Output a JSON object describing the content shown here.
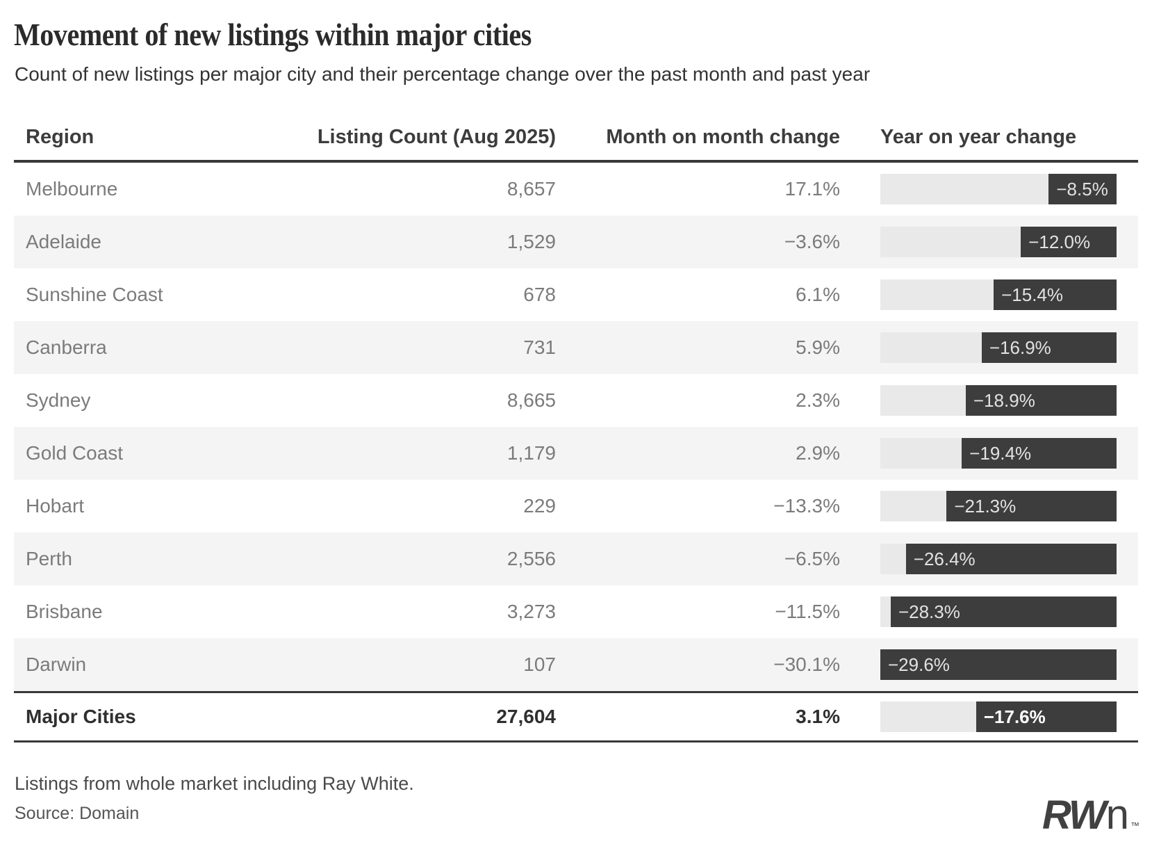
{
  "header": {
    "title": "Movement of new listings within major cities",
    "subtitle": "Count of new listings per major city and their percentage change over the past month and past year"
  },
  "chart_data": {
    "type": "table",
    "columns": [
      "Region",
      "Listing Count (Aug 2025)",
      "Month on month change",
      "Year on year change"
    ],
    "rows": [
      {
        "region": "Melbourne",
        "listing_count": "8,657",
        "mom_change": "17.1%",
        "yoy_change": -8.5,
        "yoy_label": "−8.5%"
      },
      {
        "region": "Adelaide",
        "listing_count": "1,529",
        "mom_change": "−3.6%",
        "yoy_change": -12.0,
        "yoy_label": "−12.0%"
      },
      {
        "region": "Sunshine Coast",
        "listing_count": "678",
        "mom_change": "6.1%",
        "yoy_change": -15.4,
        "yoy_label": "−15.4%"
      },
      {
        "region": "Canberra",
        "listing_count": "731",
        "mom_change": "5.9%",
        "yoy_change": -16.9,
        "yoy_label": "−16.9%"
      },
      {
        "region": "Sydney",
        "listing_count": "8,665",
        "mom_change": "2.3%",
        "yoy_change": -18.9,
        "yoy_label": "−18.9%"
      },
      {
        "region": "Gold Coast",
        "listing_count": "1,179",
        "mom_change": "2.9%",
        "yoy_change": -19.4,
        "yoy_label": "−19.4%"
      },
      {
        "region": "Hobart",
        "listing_count": "229",
        "mom_change": "−13.3%",
        "yoy_change": -21.3,
        "yoy_label": "−21.3%"
      },
      {
        "region": "Perth",
        "listing_count": "2,556",
        "mom_change": "−6.5%",
        "yoy_change": -26.4,
        "yoy_label": "−26.4%"
      },
      {
        "region": "Brisbane",
        "listing_count": "3,273",
        "mom_change": "−11.5%",
        "yoy_change": -28.3,
        "yoy_label": "−28.3%"
      },
      {
        "region": "Darwin",
        "listing_count": "107",
        "mom_change": "−30.1%",
        "yoy_change": -29.6,
        "yoy_label": "−29.6%"
      }
    ],
    "total_row": {
      "region": "Major Cities",
      "listing_count": "27,604",
      "mom_change": "3.1%",
      "yoy_change": -17.6,
      "yoy_label": "−17.6%"
    },
    "bar_style": {
      "fill_color": "#3d3d3d",
      "track_color": "#e9e9e9",
      "label_color": "#e2e2e2",
      "scaled_to_max_abs": 29.6
    },
    "layout": {
      "alt_row_color": "#f4f4f4",
      "bars_anchored": "right"
    }
  },
  "footer": {
    "note": "Listings from whole market including Ray White.",
    "source": "Source: Domain",
    "logo_rw": "RW",
    "logo_n": "n",
    "logo_tm": "™"
  }
}
